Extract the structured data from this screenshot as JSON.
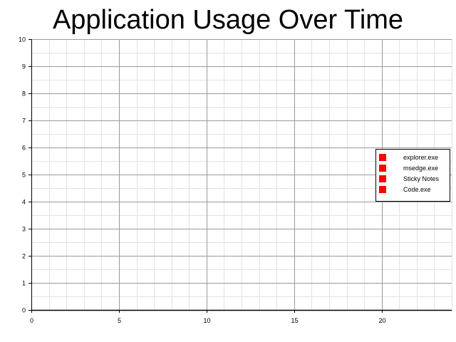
{
  "chart_data": {
    "type": "line",
    "title": "Application Usage Over Time",
    "xlabel": "",
    "ylabel": "",
    "xlim": [
      0,
      24
    ],
    "ylim": [
      0,
      10
    ],
    "x_ticks": [
      0,
      5,
      10,
      15,
      20
    ],
    "y_ticks": [
      0,
      1,
      2,
      3,
      4,
      5,
      6,
      7,
      8,
      9,
      10
    ],
    "x_minor_step": 1,
    "y_minor_step": 0.5,
    "grid": true,
    "legend_position": "right",
    "series": [
      {
        "name": "explorer.exe",
        "color": "#ff0000",
        "points": []
      },
      {
        "name": "msedge.exe",
        "color": "#ff0000",
        "points": []
      },
      {
        "name": "Sticky Notes",
        "color": "#ff0000",
        "points": []
      },
      {
        "name": "Code.exe",
        "color": "#ff0000",
        "points": []
      }
    ]
  }
}
